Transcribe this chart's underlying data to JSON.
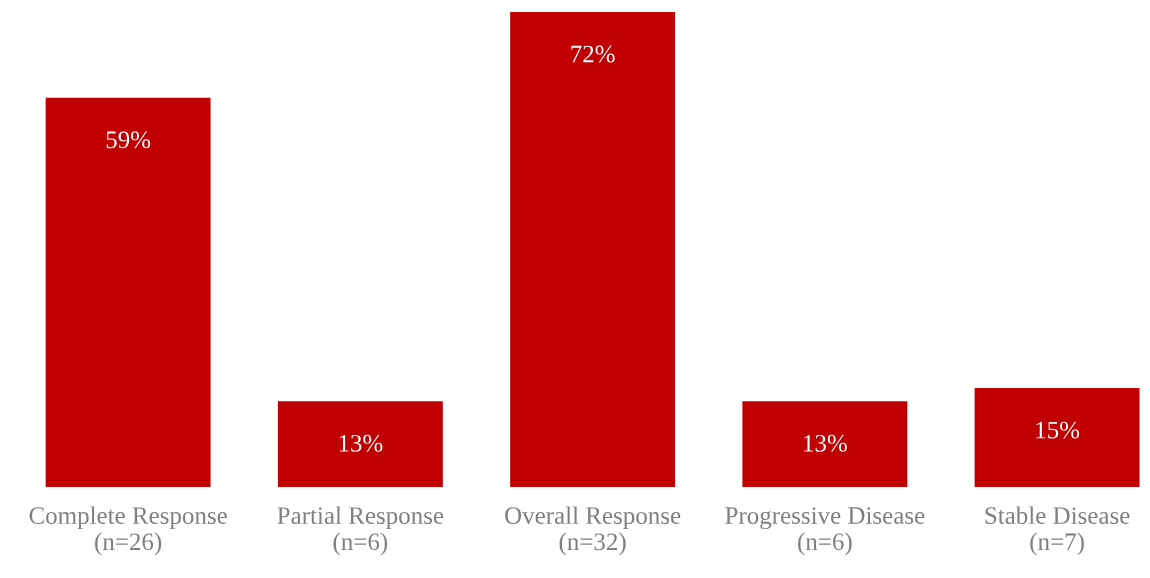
{
  "chart_data": {
    "type": "bar",
    "categories": [
      "Complete Response\n(n=26)",
      "Partial Response\n(n=6)",
      "Overall Response\n(n=32)",
      "Progressive Disease\n(n=6)",
      "Stable Disease\n(n=7)"
    ],
    "values": [
      59,
      13,
      72,
      13,
      15
    ],
    "value_labels": [
      "59%",
      "13%",
      "72%",
      "13%",
      "15%"
    ],
    "color": "#c00000",
    "ylim": [
      0,
      72
    ],
    "tick_labels": "x",
    "grid": false
  }
}
